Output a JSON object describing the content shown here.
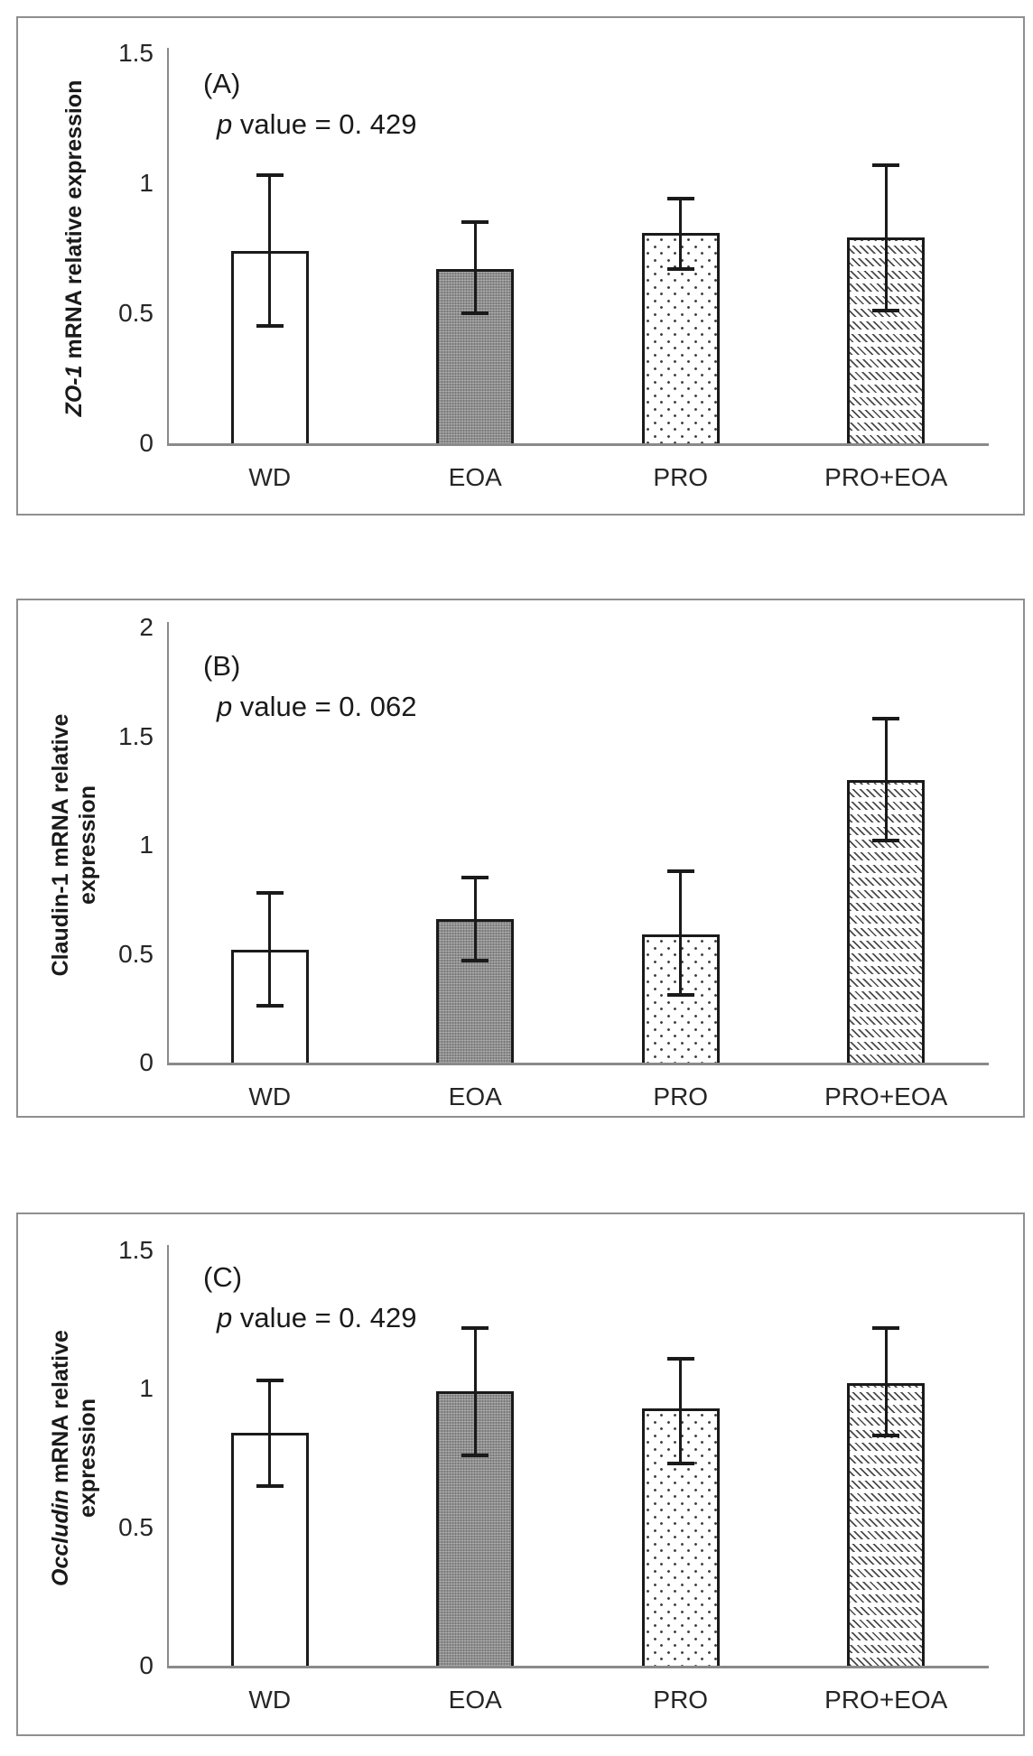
{
  "figure": {
    "background": "#ffffff",
    "panel_border_color": "#8f8f8f",
    "axis_color": "#8a8a8a",
    "bar_edge_color": "#1a1a1a",
    "error_bar_color": "#1a1a1a",
    "text_color": "#262626"
  },
  "chart_data": [
    {
      "type": "bar",
      "panel_label": "(A)",
      "annotation": {
        "italic_prefix": "p",
        "text": " value = 0. 429"
      },
      "title": "",
      "xlabel": "",
      "ylabel": "ZO-1 mRNA relative expression",
      "ylabel_lines": [
        [
          {
            "text": "ZO-1",
            "italic": true
          },
          {
            "text": " mRNA relative expression",
            "italic": false
          }
        ]
      ],
      "categories": [
        "WD",
        "EOA",
        "PRO",
        "PRO+EOA"
      ],
      "values": [
        0.74,
        0.67,
        0.81,
        0.79
      ],
      "error_low": [
        0.45,
        0.5,
        0.67,
        0.51
      ],
      "error_high": [
        1.03,
        0.85,
        0.94,
        1.07
      ],
      "bar_patterns": [
        "solid-white",
        "gray-textured",
        "sparse-dots",
        "zigzag-rows"
      ],
      "yticks": [
        0,
        0.5,
        1,
        1.5
      ],
      "ytick_labels": [
        "0",
        "0.5",
        "1",
        "1.5"
      ],
      "ylim": [
        0,
        1.5
      ],
      "grid": false,
      "legend": "none"
    },
    {
      "type": "bar",
      "panel_label": "(B)",
      "annotation": {
        "italic_prefix": "p",
        "text": " value = 0. 062"
      },
      "title": "",
      "xlabel": "",
      "ylabel": "Claudin-1 mRNA relative expression",
      "ylabel_lines": [
        [
          {
            "text": "Claudin-1 mRNA relative",
            "italic": false
          }
        ],
        [
          {
            "text": "expression",
            "italic": false
          }
        ]
      ],
      "categories": [
        "WD",
        "EOA",
        "PRO",
        "PRO+EOA"
      ],
      "values": [
        0.52,
        0.66,
        0.59,
        1.3
      ],
      "error_low": [
        0.26,
        0.47,
        0.31,
        1.02
      ],
      "error_high": [
        0.78,
        0.85,
        0.88,
        1.58
      ],
      "bar_patterns": [
        "solid-white",
        "gray-textured",
        "sparse-dots",
        "zigzag-rows"
      ],
      "yticks": [
        0,
        0.5,
        1,
        1.5,
        2
      ],
      "ytick_labels": [
        "0",
        "0.5",
        "1",
        "1.5",
        "2"
      ],
      "ylim": [
        0,
        2
      ],
      "grid": false,
      "legend": "none"
    },
    {
      "type": "bar",
      "panel_label": "(C)",
      "annotation": {
        "italic_prefix": "p",
        "text": " value = 0. 429"
      },
      "title": "",
      "xlabel": "",
      "ylabel": "Occludin mRNA relative expression",
      "ylabel_lines": [
        [
          {
            "text": "Occludin",
            "italic": true
          },
          {
            "text": " mRNA relative",
            "italic": false
          }
        ],
        [
          {
            "text": "expression",
            "italic": false
          }
        ]
      ],
      "categories": [
        "WD",
        "EOA",
        "PRO",
        "PRO+EOA"
      ],
      "values": [
        0.84,
        0.99,
        0.93,
        1.02
      ],
      "error_low": [
        0.65,
        0.76,
        0.73,
        0.83
      ],
      "error_high": [
        1.03,
        1.22,
        1.11,
        1.22
      ],
      "bar_patterns": [
        "solid-white",
        "gray-textured",
        "sparse-dots",
        "zigzag-rows"
      ],
      "yticks": [
        0,
        0.5,
        1,
        1.5
      ],
      "ytick_labels": [
        "0",
        "0.5",
        "1",
        "1.5"
      ],
      "ylim": [
        0,
        1.5
      ],
      "grid": false,
      "legend": "none"
    }
  ]
}
